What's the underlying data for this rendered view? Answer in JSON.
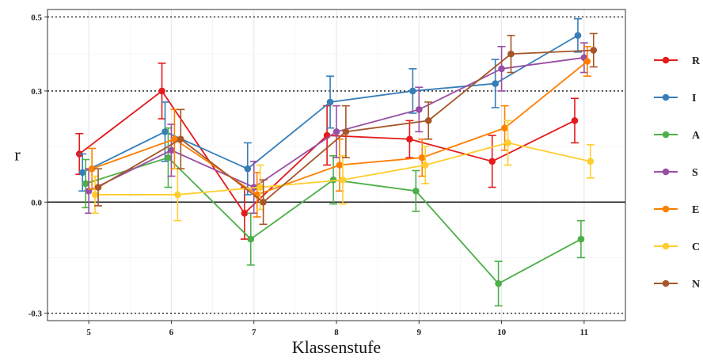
{
  "chart_data": {
    "type": "line",
    "title": "",
    "xlabel": "Klassenstufe",
    "ylabel": "r",
    "x": [
      5,
      6,
      7,
      8,
      9,
      10,
      11
    ],
    "x_tick_labels": [
      "5",
      "6",
      "7",
      "8",
      "9",
      "10",
      "11"
    ],
    "y_ticks": [
      -0.3,
      0.0,
      0.3,
      0.5
    ],
    "y_tick_labels": [
      "-0.3",
      "0.0",
      "0.3",
      "0.5"
    ],
    "ylim": [
      -0.32,
      0.52
    ],
    "xlim": [
      4.5,
      11.5
    ],
    "grid": true,
    "reference_lines": {
      "solid": [
        0.0
      ],
      "dotted": [
        -0.3,
        0.3,
        0.5
      ]
    },
    "error_bars": true,
    "legend_position": "right",
    "series": [
      {
        "name": "R",
        "color": "#e41a1c",
        "values": [
          0.13,
          0.3,
          -0.03,
          0.18,
          0.17,
          0.11,
          0.22
        ],
        "error": [
          0.055,
          0.075,
          0.07,
          0.08,
          0.05,
          0.07,
          0.06
        ]
      },
      {
        "name": "I",
        "color": "#377eb8",
        "values": [
          0.08,
          0.19,
          0.09,
          0.27,
          0.3,
          0.32,
          0.45
        ],
        "error": [
          0.05,
          0.08,
          0.07,
          0.07,
          0.06,
          0.065,
          0.045
        ]
      },
      {
        "name": "A",
        "color": "#4daf4a",
        "values": [
          0.05,
          0.12,
          -0.1,
          0.06,
          0.03,
          -0.22,
          -0.1
        ],
        "error": [
          0.065,
          0.08,
          0.07,
          0.065,
          0.055,
          0.06,
          0.05
        ]
      },
      {
        "name": "S",
        "color": "#984ea3",
        "values": [
          0.03,
          0.14,
          0.04,
          0.19,
          0.25,
          0.36,
          0.39
        ],
        "error": [
          0.06,
          0.07,
          0.07,
          0.07,
          0.06,
          0.06,
          0.04
        ]
      },
      {
        "name": "E",
        "color": "#ff7f00",
        "values": [
          0.09,
          0.17,
          0.02,
          0.1,
          0.12,
          0.2,
          0.38
        ],
        "error": [
          0.055,
          0.08,
          0.06,
          0.07,
          0.05,
          0.06,
          0.04
        ]
      },
      {
        "name": "C",
        "color": "#ffce2e",
        "values": [
          0.02,
          0.02,
          0.04,
          0.06,
          0.1,
          0.16,
          0.11
        ],
        "error": [
          0.05,
          0.07,
          0.06,
          0.065,
          0.05,
          0.06,
          0.045
        ]
      },
      {
        "name": "N",
        "color": "#a65628",
        "values": [
          0.04,
          0.17,
          0.0,
          0.19,
          0.22,
          0.4,
          0.41
        ],
        "error": [
          0.05,
          0.08,
          0.06,
          0.07,
          0.05,
          0.05,
          0.045
        ]
      }
    ]
  }
}
